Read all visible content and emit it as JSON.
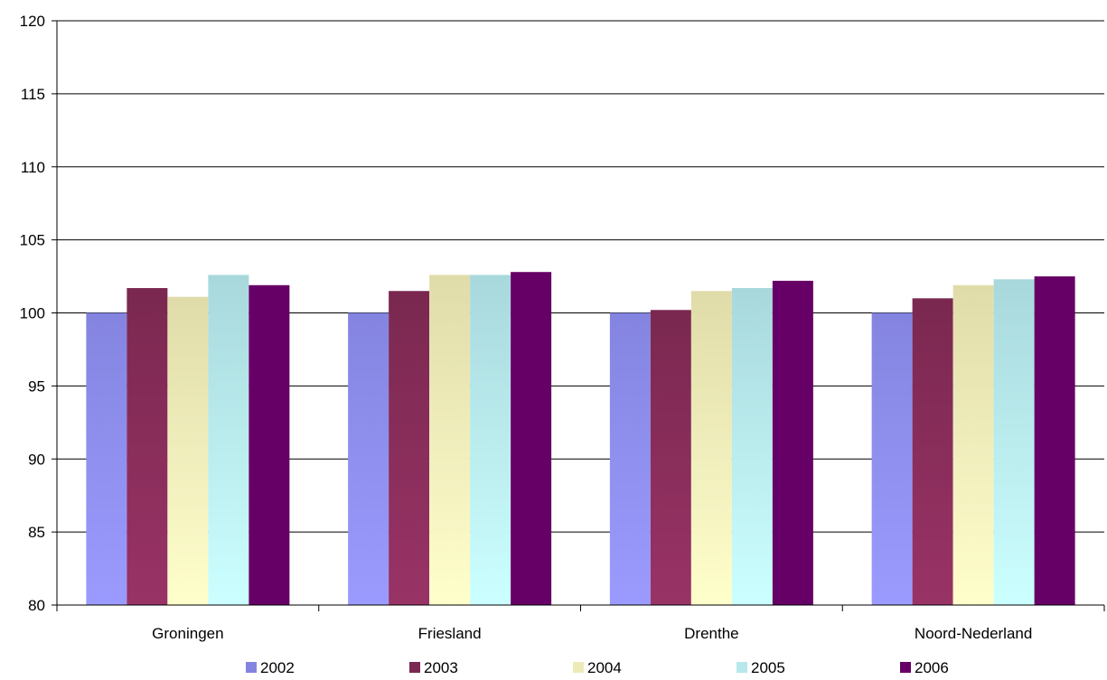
{
  "chart_data": {
    "type": "bar",
    "categories": [
      "Groningen",
      "Friesland",
      "Drenthe",
      "Noord-Nederland"
    ],
    "series": [
      {
        "name": "2002",
        "values": [
          100,
          100,
          100,
          100
        ],
        "color": "#8484e0",
        "colorLight": "#9b9bff"
      },
      {
        "name": "2003",
        "values": [
          101.7,
          101.5,
          100.2,
          101.0
        ],
        "color": "#7a2850",
        "colorLight": "#993366"
      },
      {
        "name": "2004",
        "values": [
          101.1,
          102.6,
          101.5,
          101.9
        ],
        "color": "#e0dcaa",
        "colorLight": "#ffffcc"
      },
      {
        "name": "2005",
        "values": [
          102.6,
          102.6,
          101.7,
          102.3
        ],
        "color": "#a8d8dc",
        "colorLight": "#ccffff"
      },
      {
        "name": "2006",
        "values": [
          101.9,
          102.8,
          102.2,
          102.5
        ],
        "color": "#660066",
        "colorLight": "#660066"
      }
    ],
    "ylim": [
      80,
      120
    ],
    "yticks": [
      80,
      85,
      90,
      95,
      100,
      105,
      110,
      115,
      120
    ],
    "grid": true,
    "legend_position": "bottom",
    "title": "",
    "xlabel": "",
    "ylabel": ""
  }
}
